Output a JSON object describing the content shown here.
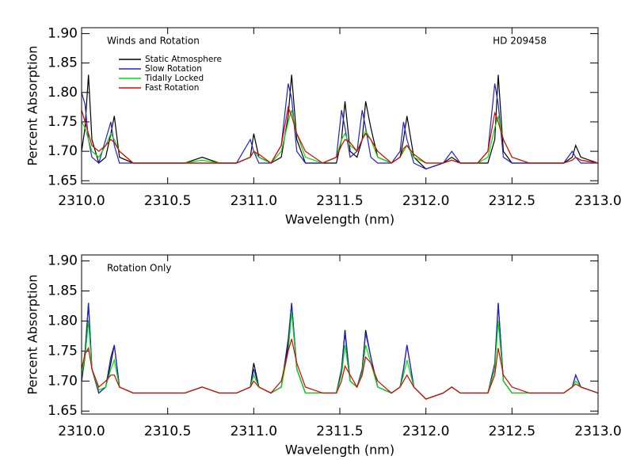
{
  "chart_data": [
    {
      "type": "line",
      "annotations": [
        "Winds and Rotation",
        "HD 209458"
      ],
      "xlabel": "Wavelength (nm)",
      "ylabel": "Percent Absorption",
      "legend": "upper left",
      "xlim": [
        2310.0,
        2313.0
      ],
      "ylim": [
        1.645,
        1.91
      ],
      "xticks": [
        {
          "value": 2310,
          "label": "2310.0"
        },
        2310.5,
        {
          "value": 2311,
          "label": "2311.0"
        },
        2311.5,
        {
          "value": 2312,
          "label": "2312.0"
        },
        2312.5,
        {
          "value": 2313,
          "label": "2313.0"
        }
      ],
      "yticks": [
        {
          "value": 1.9,
          "label": "1.90"
        },
        1.85,
        {
          "value": 1.8,
          "label": "1.80"
        },
        1.75,
        {
          "value": 1.7,
          "label": "1.70"
        },
        1.65
      ],
      "x": [
        2310.0,
        2310.02,
        2310.04,
        2310.06,
        2310.1,
        2310.14,
        2310.17,
        2310.19,
        2310.22,
        2310.3,
        2310.4,
        2310.5,
        2310.6,
        2310.7,
        2310.8,
        2310.9,
        2310.98,
        2311.0,
        2311.03,
        2311.1,
        2311.16,
        2311.2,
        2311.22,
        2311.25,
        2311.3,
        2311.4,
        2311.48,
        2311.51,
        2311.53,
        2311.56,
        2311.6,
        2311.63,
        2311.65,
        2311.68,
        2311.72,
        2311.8,
        2311.85,
        2311.87,
        2311.89,
        2311.93,
        2312.0,
        2312.1,
        2312.15,
        2312.2,
        2312.3,
        2312.36,
        2312.4,
        2312.42,
        2312.45,
        2312.5,
        2312.6,
        2312.7,
        2312.8,
        2312.85,
        2312.87,
        2312.9,
        2313.0
      ],
      "series": [
        {
          "name": "Static Atmosphere",
          "color": "#000000",
          "values": [
            1.7,
            1.74,
            1.83,
            1.72,
            1.68,
            1.69,
            1.73,
            1.76,
            1.69,
            1.68,
            1.68,
            1.68,
            1.68,
            1.69,
            1.68,
            1.68,
            1.69,
            1.73,
            1.69,
            1.68,
            1.69,
            1.76,
            1.83,
            1.72,
            1.68,
            1.68,
            1.68,
            1.72,
            1.785,
            1.7,
            1.69,
            1.72,
            1.785,
            1.74,
            1.69,
            1.68,
            1.69,
            1.72,
            1.76,
            1.69,
            1.67,
            1.68,
            1.69,
            1.68,
            1.68,
            1.68,
            1.72,
            1.83,
            1.7,
            1.68,
            1.68,
            1.68,
            1.68,
            1.69,
            1.71,
            1.69,
            1.68
          ]
        },
        {
          "name": "Slow Rotation",
          "color": "#2222cc",
          "values": [
            1.8,
            1.78,
            1.72,
            1.69,
            1.68,
            1.72,
            1.75,
            1.71,
            1.68,
            1.68,
            1.68,
            1.68,
            1.68,
            1.68,
            1.68,
            1.68,
            1.72,
            1.7,
            1.68,
            1.68,
            1.71,
            1.815,
            1.79,
            1.7,
            1.68,
            1.68,
            1.69,
            1.77,
            1.74,
            1.69,
            1.7,
            1.77,
            1.74,
            1.69,
            1.68,
            1.68,
            1.7,
            1.75,
            1.72,
            1.68,
            1.67,
            1.68,
            1.7,
            1.68,
            1.68,
            1.7,
            1.815,
            1.78,
            1.69,
            1.68,
            1.68,
            1.68,
            1.68,
            1.7,
            1.69,
            1.68,
            1.68
          ]
        },
        {
          "name": "Tidally Locked",
          "color": "#00dd00",
          "values": [
            1.75,
            1.74,
            1.72,
            1.7,
            1.69,
            1.71,
            1.73,
            1.72,
            1.7,
            1.68,
            1.68,
            1.68,
            1.68,
            1.685,
            1.68,
            1.68,
            1.69,
            1.7,
            1.69,
            1.68,
            1.7,
            1.75,
            1.77,
            1.73,
            1.69,
            1.68,
            1.69,
            1.72,
            1.73,
            1.71,
            1.7,
            1.72,
            1.735,
            1.72,
            1.69,
            1.68,
            1.69,
            1.7,
            1.71,
            1.69,
            1.68,
            1.68,
            1.685,
            1.68,
            1.68,
            1.69,
            1.74,
            1.76,
            1.72,
            1.69,
            1.68,
            1.68,
            1.68,
            1.685,
            1.69,
            1.685,
            1.68
          ]
        },
        {
          "name": "Fast Rotation",
          "color": "#dd0000",
          "values": [
            1.77,
            1.75,
            1.73,
            1.71,
            1.7,
            1.71,
            1.72,
            1.715,
            1.7,
            1.68,
            1.68,
            1.68,
            1.68,
            1.68,
            1.68,
            1.68,
            1.69,
            1.7,
            1.695,
            1.68,
            1.71,
            1.775,
            1.76,
            1.73,
            1.7,
            1.68,
            1.69,
            1.71,
            1.72,
            1.715,
            1.7,
            1.72,
            1.73,
            1.72,
            1.7,
            1.68,
            1.69,
            1.705,
            1.71,
            1.695,
            1.68,
            1.68,
            1.685,
            1.68,
            1.68,
            1.7,
            1.765,
            1.75,
            1.72,
            1.69,
            1.68,
            1.68,
            1.68,
            1.685,
            1.69,
            1.685,
            1.68
          ]
        }
      ]
    },
    {
      "type": "line",
      "annotations": [
        "Rotation Only"
      ],
      "xlabel": "Wavelength (nm)",
      "ylabel": "Percent Absorption",
      "xlim": [
        2310.0,
        2313.0
      ],
      "ylim": [
        1.645,
        1.91
      ],
      "xticks": [
        {
          "value": 2310,
          "label": "2310.0"
        },
        2310.5,
        {
          "value": 2311,
          "label": "2311.0"
        },
        2311.5,
        {
          "value": 2312,
          "label": "2312.0"
        },
        2312.5,
        {
          "value": 2313,
          "label": "2313.0"
        }
      ],
      "yticks": [
        {
          "value": 1.9,
          "label": "1.90"
        },
        1.85,
        {
          "value": 1.8,
          "label": "1.80"
        },
        1.75,
        {
          "value": 1.7,
          "label": "1.70"
        },
        1.65
      ],
      "x": [
        2310.0,
        2310.02,
        2310.04,
        2310.06,
        2310.1,
        2310.14,
        2310.17,
        2310.19,
        2310.22,
        2310.3,
        2310.4,
        2310.5,
        2310.6,
        2310.7,
        2310.8,
        2310.9,
        2310.98,
        2311.0,
        2311.03,
        2311.1,
        2311.16,
        2311.2,
        2311.22,
        2311.25,
        2311.3,
        2311.4,
        2311.48,
        2311.51,
        2311.53,
        2311.56,
        2311.6,
        2311.63,
        2311.65,
        2311.68,
        2311.72,
        2311.8,
        2311.85,
        2311.87,
        2311.89,
        2311.93,
        2312.0,
        2312.1,
        2312.15,
        2312.2,
        2312.3,
        2312.36,
        2312.4,
        2312.42,
        2312.45,
        2312.5,
        2312.6,
        2312.7,
        2312.8,
        2312.85,
        2312.87,
        2312.9,
        2313.0
      ],
      "series": [
        {
          "color": "#000000",
          "values": [
            1.7,
            1.74,
            1.83,
            1.72,
            1.68,
            1.69,
            1.73,
            1.76,
            1.69,
            1.68,
            1.68,
            1.68,
            1.68,
            1.69,
            1.68,
            1.68,
            1.69,
            1.73,
            1.69,
            1.68,
            1.69,
            1.76,
            1.83,
            1.72,
            1.68,
            1.68,
            1.68,
            1.72,
            1.785,
            1.7,
            1.69,
            1.72,
            1.785,
            1.74,
            1.69,
            1.68,
            1.69,
            1.72,
            1.76,
            1.69,
            1.67,
            1.68,
            1.69,
            1.68,
            1.68,
            1.68,
            1.72,
            1.83,
            1.7,
            1.68,
            1.68,
            1.68,
            1.68,
            1.69,
            1.71,
            1.69,
            1.68
          ]
        },
        {
          "color": "#2222cc",
          "values": [
            1.7,
            1.75,
            1.83,
            1.72,
            1.68,
            1.69,
            1.74,
            1.76,
            1.69,
            1.68,
            1.68,
            1.68,
            1.68,
            1.69,
            1.68,
            1.68,
            1.69,
            1.72,
            1.69,
            1.68,
            1.69,
            1.77,
            1.83,
            1.72,
            1.68,
            1.68,
            1.68,
            1.72,
            1.78,
            1.7,
            1.69,
            1.72,
            1.78,
            1.74,
            1.69,
            1.68,
            1.69,
            1.72,
            1.76,
            1.69,
            1.67,
            1.68,
            1.69,
            1.68,
            1.68,
            1.68,
            1.73,
            1.83,
            1.7,
            1.68,
            1.68,
            1.68,
            1.68,
            1.69,
            1.71,
            1.69,
            1.68
          ]
        },
        {
          "color": "#00dd00",
          "values": [
            1.71,
            1.74,
            1.8,
            1.72,
            1.685,
            1.69,
            1.72,
            1.735,
            1.69,
            1.68,
            1.68,
            1.68,
            1.68,
            1.69,
            1.68,
            1.68,
            1.69,
            1.71,
            1.69,
            1.68,
            1.69,
            1.75,
            1.815,
            1.72,
            1.68,
            1.68,
            1.68,
            1.71,
            1.76,
            1.7,
            1.69,
            1.715,
            1.76,
            1.73,
            1.69,
            1.68,
            1.69,
            1.71,
            1.735,
            1.69,
            1.67,
            1.68,
            1.69,
            1.68,
            1.68,
            1.68,
            1.72,
            1.8,
            1.7,
            1.68,
            1.68,
            1.68,
            1.68,
            1.69,
            1.7,
            1.69,
            1.68
          ]
        },
        {
          "color": "#dd0000",
          "values": [
            1.72,
            1.745,
            1.755,
            1.72,
            1.69,
            1.7,
            1.71,
            1.71,
            1.69,
            1.68,
            1.68,
            1.68,
            1.68,
            1.69,
            1.68,
            1.68,
            1.69,
            1.7,
            1.69,
            1.68,
            1.7,
            1.75,
            1.77,
            1.73,
            1.69,
            1.68,
            1.68,
            1.7,
            1.725,
            1.71,
            1.69,
            1.71,
            1.74,
            1.73,
            1.7,
            1.68,
            1.69,
            1.7,
            1.71,
            1.69,
            1.67,
            1.68,
            1.69,
            1.68,
            1.68,
            1.68,
            1.71,
            1.755,
            1.71,
            1.69,
            1.68,
            1.68,
            1.68,
            1.69,
            1.695,
            1.69,
            1.68
          ]
        }
      ]
    }
  ]
}
